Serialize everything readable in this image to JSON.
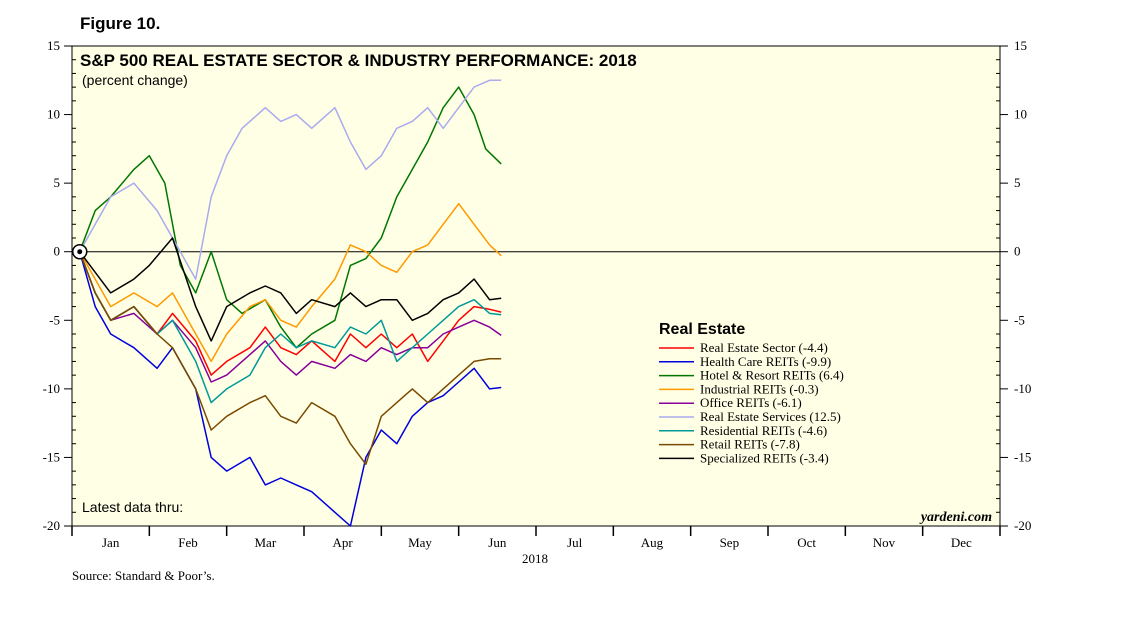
{
  "figure_label": "Figure 10.",
  "source": "Source: Standard & Poor’s.",
  "chart_data": {
    "type": "line",
    "title": "S&P 500 REAL ESTATE SECTOR & INDUSTRY PERFORMANCE: 2018",
    "subtitle": "(percent change)",
    "latest_note": "Latest data thru:",
    "watermark": "yardeni.com",
    "xlabel": "2018",
    "ylabel": "",
    "ylim": [
      -20,
      15
    ],
    "y_ticks": [
      15,
      10,
      5,
      0,
      -5,
      -10,
      -15,
      -20
    ],
    "x_domain": [
      0,
      12
    ],
    "months": [
      "Jan",
      "Feb",
      "Mar",
      "Apr",
      "May",
      "Jun",
      "Jul",
      "Aug",
      "Sep",
      "Oct",
      "Nov",
      "Dec"
    ],
    "legend_title": "Real Estate",
    "background_color": "#ffffe6",
    "series": [
      {
        "name": "Real Estate Sector (-4.4)",
        "color": "#ff0000",
        "x": [
          0.1,
          0.3,
          0.5,
          0.8,
          1.1,
          1.3,
          1.6,
          1.8,
          2.0,
          2.3,
          2.5,
          2.7,
          2.9,
          3.1,
          3.4,
          3.6,
          3.8,
          4.0,
          4.2,
          4.4,
          4.6,
          4.8,
          5.0,
          5.2,
          5.4,
          5.55
        ],
        "y": [
          0,
          -3,
          -5,
          -4,
          -6,
          -4.5,
          -6.5,
          -9,
          -8,
          -7,
          -5.5,
          -7,
          -7.5,
          -6.5,
          -8,
          -6,
          -7,
          -6,
          -7,
          -6,
          -8,
          -6.5,
          -5,
          -4,
          -4.2,
          -4.4
        ]
      },
      {
        "name": "Health Care REITs (-9.9)",
        "color": "#0000dd",
        "x": [
          0.1,
          0.3,
          0.5,
          0.8,
          1.1,
          1.3,
          1.6,
          1.8,
          2.0,
          2.3,
          2.5,
          2.7,
          2.9,
          3.1,
          3.4,
          3.6,
          3.8,
          4.0,
          4.2,
          4.4,
          4.6,
          4.8,
          5.0,
          5.2,
          5.4,
          5.55
        ],
        "y": [
          0,
          -4,
          -6,
          -7,
          -8.5,
          -7,
          -10,
          -15,
          -16,
          -15,
          -17,
          -16.5,
          -17,
          -17.5,
          -19,
          -20,
          -15,
          -13,
          -14,
          -12,
          -11,
          -10.5,
          -9.5,
          -8.5,
          -10,
          -9.9
        ]
      },
      {
        "name": "Hotel & Resort REITs (6.4)",
        "color": "#007700",
        "x": [
          0.1,
          0.3,
          0.5,
          0.8,
          1.0,
          1.2,
          1.4,
          1.6,
          1.8,
          2.0,
          2.2,
          2.5,
          2.7,
          2.9,
          3.1,
          3.4,
          3.6,
          3.8,
          4.0,
          4.2,
          4.4,
          4.6,
          4.8,
          5.0,
          5.2,
          5.35,
          5.55
        ],
        "y": [
          0,
          3,
          4,
          6,
          7,
          5,
          -1,
          -3,
          0,
          -3.5,
          -4.5,
          -3.5,
          -5.5,
          -7,
          -6,
          -5,
          -1,
          -0.5,
          1,
          4,
          6,
          8,
          10.5,
          12,
          10,
          7.5,
          6.4
        ]
      },
      {
        "name": "Industrial REITs (-0.3)",
        "color": "#ff9900",
        "x": [
          0.1,
          0.3,
          0.5,
          0.8,
          1.1,
          1.3,
          1.6,
          1.8,
          2.0,
          2.3,
          2.5,
          2.7,
          2.9,
          3.1,
          3.4,
          3.6,
          3.8,
          4.0,
          4.2,
          4.4,
          4.6,
          4.8,
          5.0,
          5.2,
          5.4,
          5.55
        ],
        "y": [
          0,
          -2,
          -4,
          -3,
          -4,
          -3,
          -6,
          -8,
          -6,
          -4,
          -3.5,
          -5,
          -5.5,
          -4,
          -2,
          0.5,
          0,
          -1,
          -1.5,
          0,
          0.5,
          2,
          3.5,
          2,
          0.5,
          -0.3
        ]
      },
      {
        "name": "Office REITs (-6.1)",
        "color": "#880099",
        "x": [
          0.1,
          0.3,
          0.5,
          0.8,
          1.1,
          1.3,
          1.6,
          1.8,
          2.0,
          2.3,
          2.5,
          2.7,
          2.9,
          3.1,
          3.4,
          3.6,
          3.8,
          4.0,
          4.2,
          4.4,
          4.6,
          4.8,
          5.0,
          5.2,
          5.4,
          5.55
        ],
        "y": [
          0,
          -3,
          -5,
          -4.5,
          -6,
          -5,
          -7,
          -9.5,
          -9,
          -7.5,
          -6.5,
          -8,
          -9,
          -8,
          -8.5,
          -7.5,
          -8,
          -7,
          -7.5,
          -7,
          -7,
          -6,
          -5.5,
          -5,
          -5.5,
          -6.1
        ]
      },
      {
        "name": "Real Estate Services (12.5)",
        "color": "#aaaaee",
        "x": [
          0.1,
          0.3,
          0.5,
          0.8,
          1.1,
          1.3,
          1.6,
          1.8,
          2.0,
          2.2,
          2.5,
          2.7,
          2.9,
          3.1,
          3.4,
          3.6,
          3.8,
          4.0,
          4.2,
          4.4,
          4.6,
          4.8,
          5.0,
          5.2,
          5.4,
          5.55
        ],
        "y": [
          0,
          2,
          4,
          5,
          3,
          1,
          -2,
          4,
          7,
          9,
          10.5,
          9.5,
          10,
          9,
          10.5,
          8,
          6,
          7,
          9,
          9.5,
          10.5,
          9,
          10.5,
          12,
          12.5,
          12.5
        ]
      },
      {
        "name": "Residential REITs (-4.6)",
        "color": "#009999",
        "x": [
          0.1,
          0.3,
          0.5,
          0.8,
          1.1,
          1.3,
          1.6,
          1.8,
          2.0,
          2.3,
          2.5,
          2.7,
          2.9,
          3.1,
          3.4,
          3.6,
          3.8,
          4.0,
          4.2,
          4.4,
          4.6,
          4.8,
          5.0,
          5.2,
          5.4,
          5.55
        ],
        "y": [
          0,
          -3,
          -5,
          -4,
          -6,
          -5,
          -8,
          -11,
          -10,
          -9,
          -7,
          -6,
          -7,
          -6.5,
          -7,
          -5.5,
          -6,
          -5,
          -8,
          -7,
          -6,
          -5,
          -4,
          -3.5,
          -4.5,
          -4.6
        ]
      },
      {
        "name": "Retail REITs (-7.8)",
        "color": "#7a4a00",
        "x": [
          0.1,
          0.3,
          0.5,
          0.8,
          1.1,
          1.3,
          1.6,
          1.8,
          2.0,
          2.3,
          2.5,
          2.7,
          2.9,
          3.1,
          3.4,
          3.6,
          3.8,
          4.0,
          4.2,
          4.4,
          4.6,
          4.8,
          5.0,
          5.2,
          5.4,
          5.55
        ],
        "y": [
          0,
          -3,
          -5,
          -4,
          -6,
          -7,
          -10,
          -13,
          -12,
          -11,
          -10.5,
          -12,
          -12.5,
          -11,
          -12,
          -14,
          -15.5,
          -12,
          -11,
          -10,
          -11,
          -10,
          -9,
          -8,
          -7.8,
          -7.8
        ]
      },
      {
        "name": "Specialized REITs (-3.4)",
        "color": "#000000",
        "x": [
          0.1,
          0.3,
          0.5,
          0.8,
          1.0,
          1.3,
          1.6,
          1.8,
          2.0,
          2.3,
          2.5,
          2.7,
          2.9,
          3.1,
          3.4,
          3.6,
          3.8,
          4.0,
          4.2,
          4.4,
          4.6,
          4.8,
          5.0,
          5.2,
          5.4,
          5.55
        ],
        "y": [
          0,
          -1.5,
          -3,
          -2,
          -1,
          1,
          -4,
          -6.5,
          -4,
          -3,
          -2.5,
          -3,
          -4.5,
          -3.5,
          -4,
          -3,
          -4,
          -3.5,
          -3.5,
          -5,
          -4.5,
          -3.5,
          -3,
          -2,
          -3.5,
          -3.4
        ]
      }
    ]
  }
}
